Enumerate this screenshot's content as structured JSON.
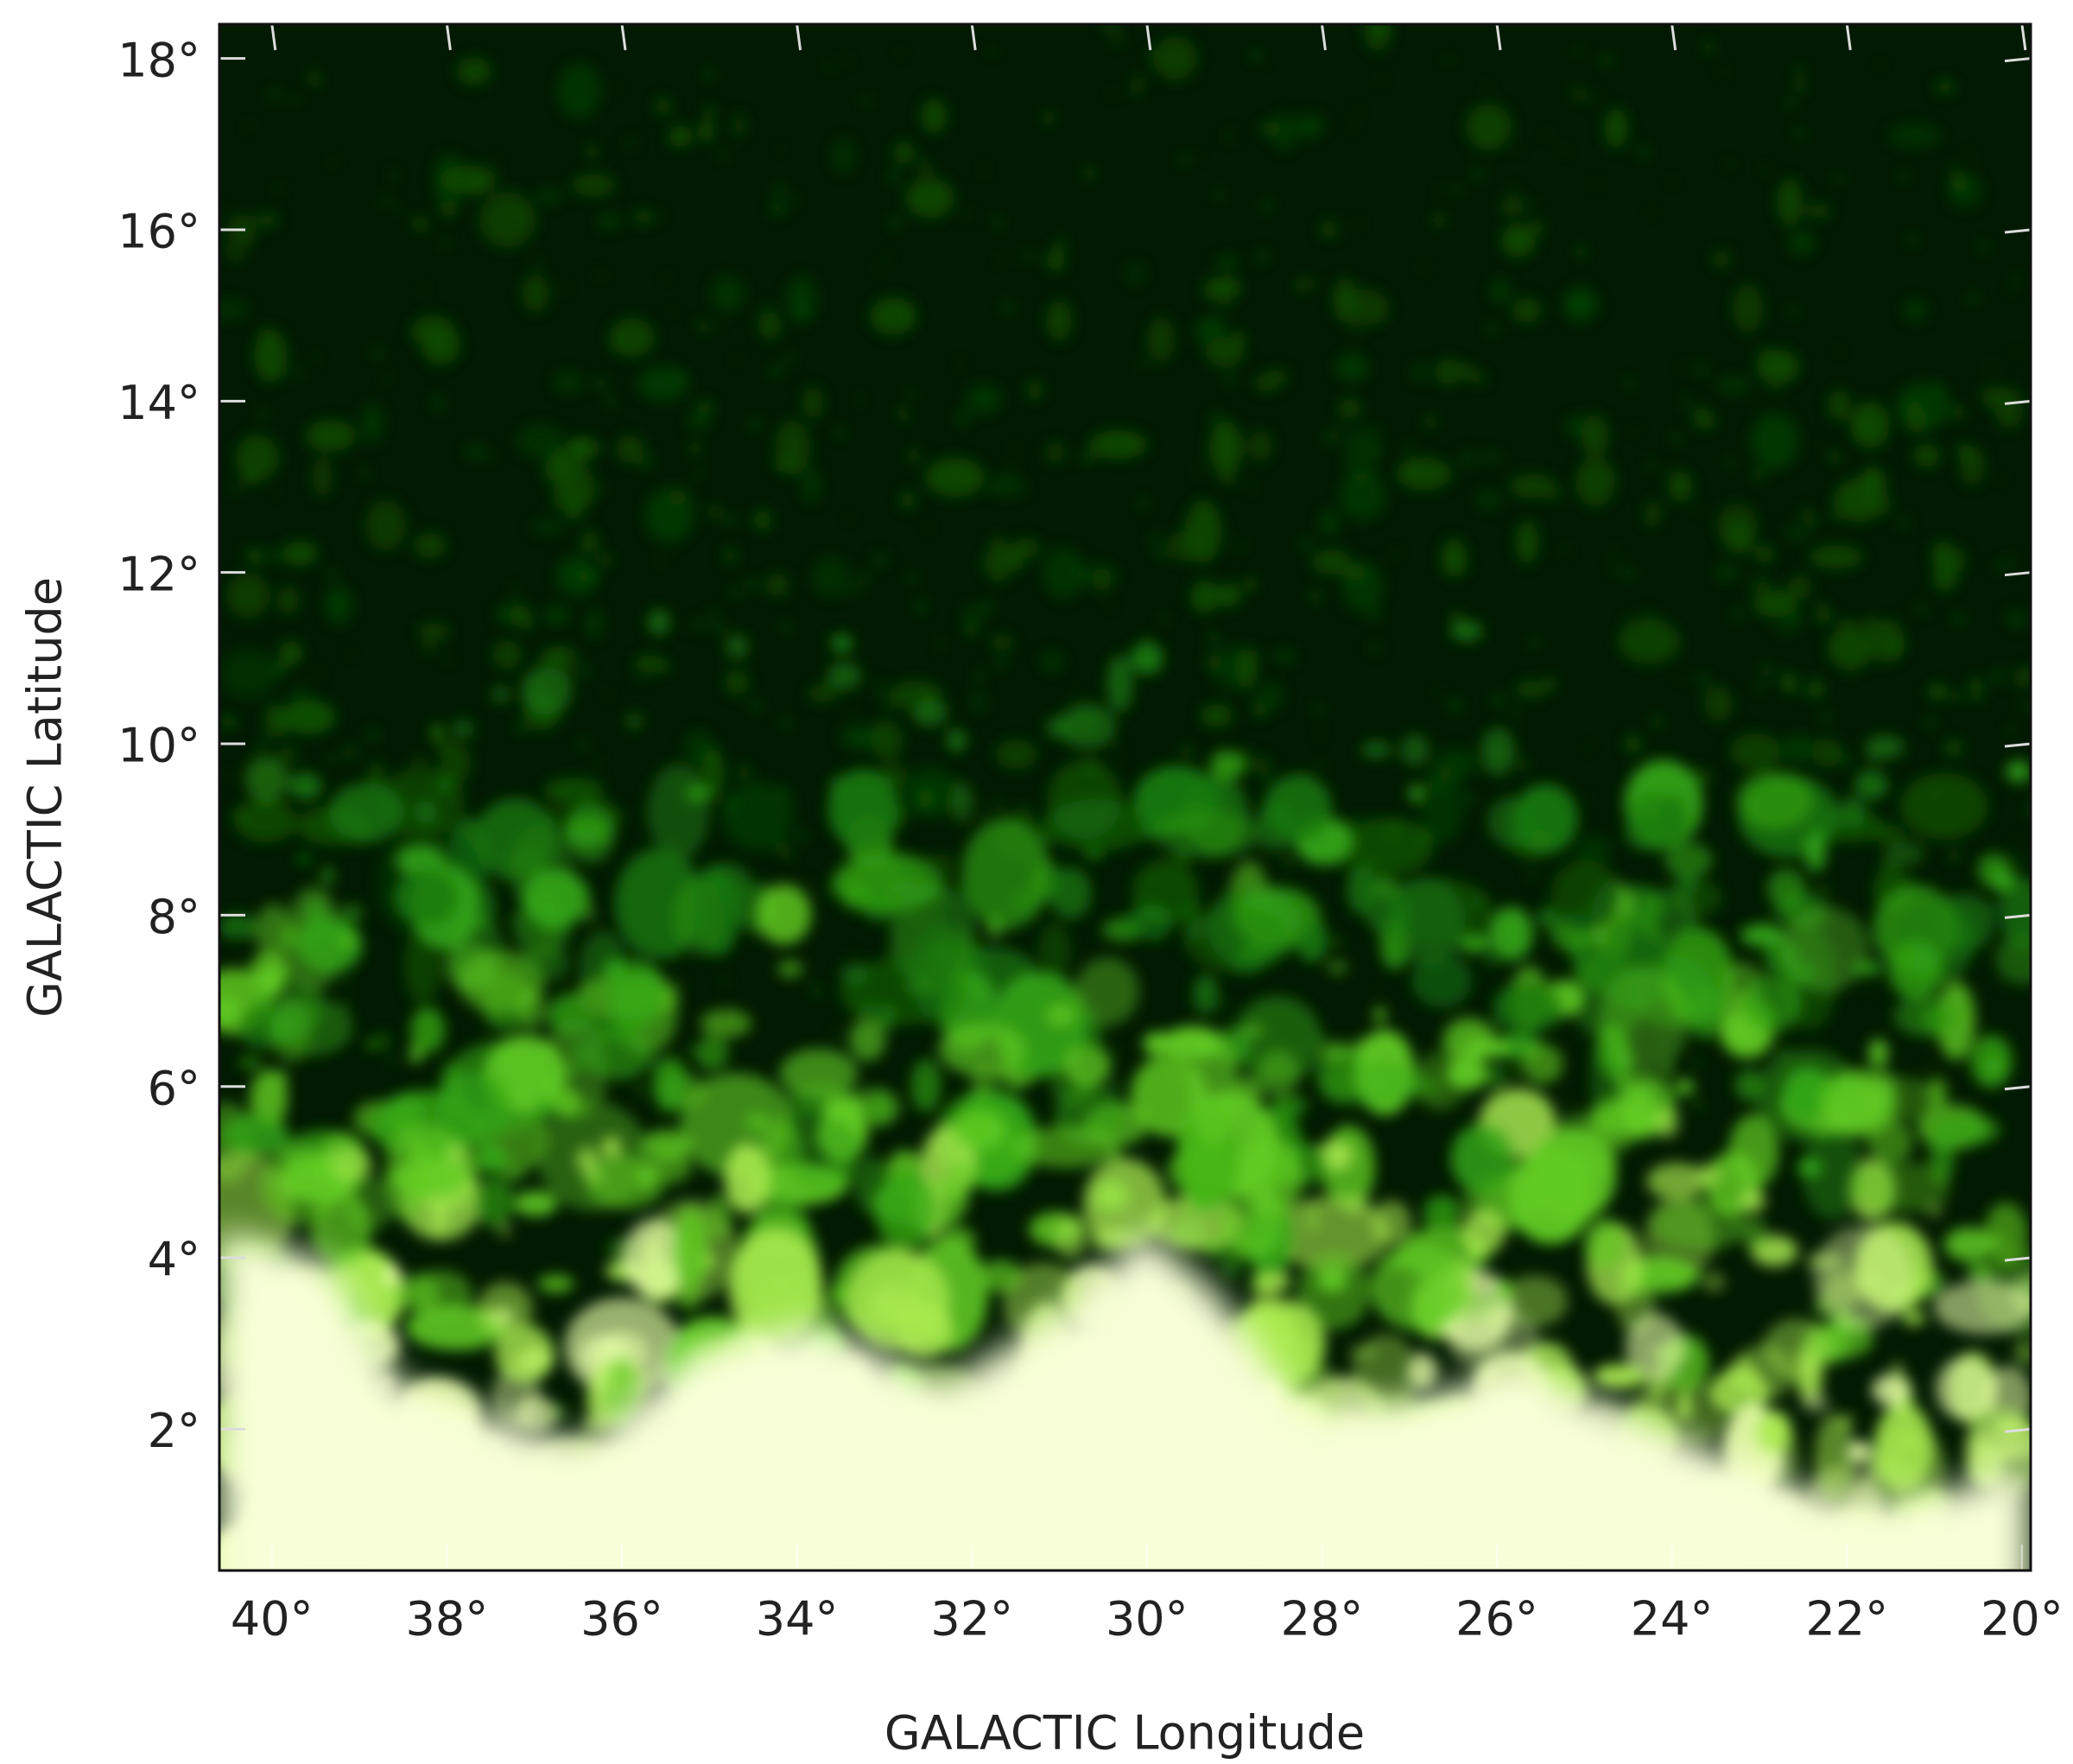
{
  "chart_data": {
    "type": "image",
    "xlabel": "GALACTIC Longitude",
    "ylabel": "GALACTIC Latitude",
    "xlim": [
      40.6,
      19.9
    ],
    "ylim": [
      0.35,
      18.4
    ],
    "xticks": [
      {
        "value": 40,
        "label": "40°"
      },
      {
        "value": 38,
        "label": "38°"
      },
      {
        "value": 36,
        "label": "36°"
      },
      {
        "value": 34,
        "label": "34°"
      },
      {
        "value": 32,
        "label": "32°"
      },
      {
        "value": 30,
        "label": "30°"
      },
      {
        "value": 28,
        "label": "28°"
      },
      {
        "value": 26,
        "label": "26°"
      },
      {
        "value": 24,
        "label": "24°"
      },
      {
        "value": 22,
        "label": "22°"
      },
      {
        "value": 20,
        "label": "20°"
      }
    ],
    "yticks": [
      {
        "value": 2,
        "label": "2°"
      },
      {
        "value": 4,
        "label": "4°"
      },
      {
        "value": 6,
        "label": "6°"
      },
      {
        "value": 8,
        "label": "8°"
      },
      {
        "value": 10,
        "label": "10°"
      },
      {
        "value": 12,
        "label": "12°"
      },
      {
        "value": 14,
        "label": "14°"
      },
      {
        "value": 16,
        "label": "16°"
      },
      {
        "value": 18,
        "label": "18°"
      }
    ]
  }
}
